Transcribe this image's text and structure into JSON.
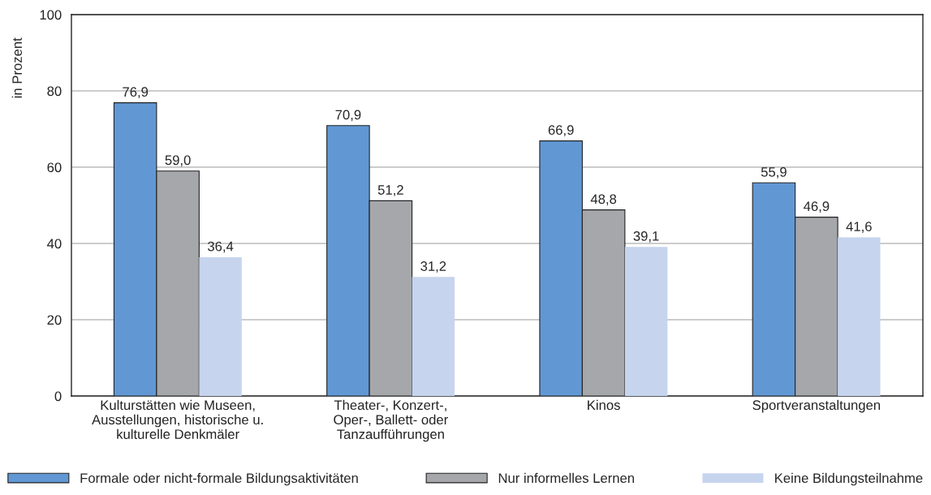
{
  "chart_data": {
    "type": "bar",
    "ylabel": "in Prozent",
    "categories": [
      "Kulturstätten wie Museen,\nAusstellungen, historische u.\nkulturelle Denkmäler",
      "Theater-, Konzert-,\nOper-, Ballett- oder\nTanzaufführungen",
      "Kinos",
      "Sportveranstaltungen"
    ],
    "series": [
      {
        "name": "Formale oder nicht-formale Bildungsaktivitäten",
        "color": "#6198d4",
        "values": [
          76.9,
          70.9,
          66.9,
          55.9
        ],
        "value_labels": [
          "76,9",
          "70,9",
          "66,9",
          "55,9"
        ]
      },
      {
        "name": "Nur informelles Lernen",
        "color": "#a5a7aa",
        "values": [
          59.0,
          51.2,
          48.8,
          46.9
        ],
        "value_labels": [
          "59,0",
          "51,2",
          "48,8",
          "46,9"
        ]
      },
      {
        "name": "Keine Bildungsteilnahme",
        "color": "#c6d4ee",
        "values": [
          36.4,
          31.2,
          39.1,
          41.6
        ],
        "value_labels": [
          "36,4",
          "31,2",
          "39,1",
          "41,6"
        ]
      }
    ],
    "ylim": [
      0,
      100
    ],
    "yticks": [
      0,
      20,
      40,
      60,
      80,
      100
    ],
    "grid": "y",
    "legend": "bottom"
  }
}
